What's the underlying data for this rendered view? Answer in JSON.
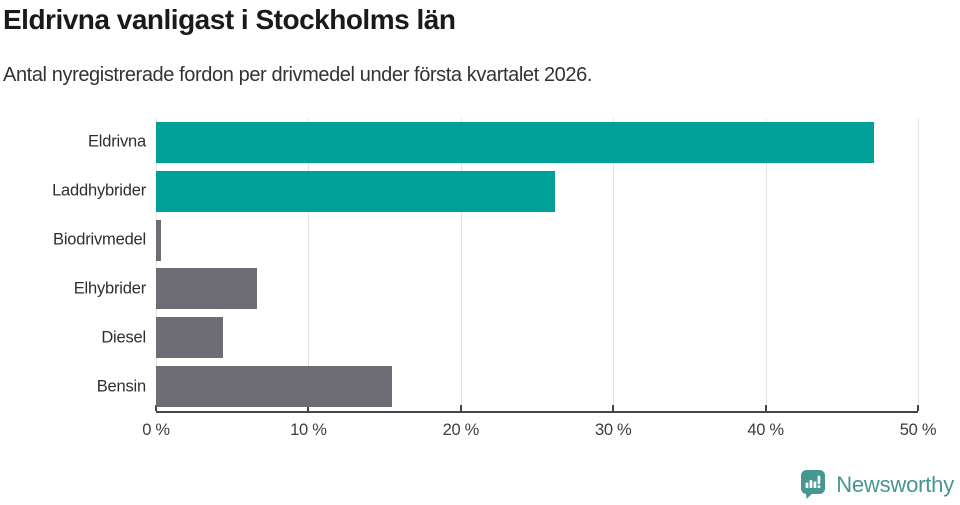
{
  "header": {
    "title": "Eldrivna vanligast i Stockholms län",
    "subtitle": "Antal nyregistrerade fordon per drivmedel under första kvartalet 2026."
  },
  "chart_data": {
    "type": "bar",
    "orientation": "horizontal",
    "title": "Eldrivna vanligast i Stockholms län",
    "subtitle": "Antal nyregistrerade fordon per drivmedel under första kvartalet 2026.",
    "categories": [
      "Eldrivna",
      "Laddhybrider",
      "Biodrivmedel",
      "Elhybrider",
      "Diesel",
      "Bensin"
    ],
    "values": [
      47.1,
      26.2,
      0.3,
      6.6,
      4.4,
      15.5
    ],
    "unit": "%",
    "xlim": [
      0,
      50
    ],
    "x_ticks": [
      0,
      10,
      20,
      30,
      40,
      50
    ],
    "x_tick_labels": [
      "0 %",
      "10 %",
      "20 %",
      "30 %",
      "40 %",
      "50 %"
    ],
    "grid": "vertical",
    "legend": "none",
    "colors": {
      "highlight": "#00a099",
      "default": "#6e6d76"
    },
    "bar_color_keys": [
      "highlight",
      "highlight",
      "default",
      "default",
      "default",
      "default"
    ]
  },
  "footer": {
    "brand": "Newsworthy",
    "brand_color": "#469792",
    "logo_icon": "bar-chart-speech-bubble-icon"
  }
}
